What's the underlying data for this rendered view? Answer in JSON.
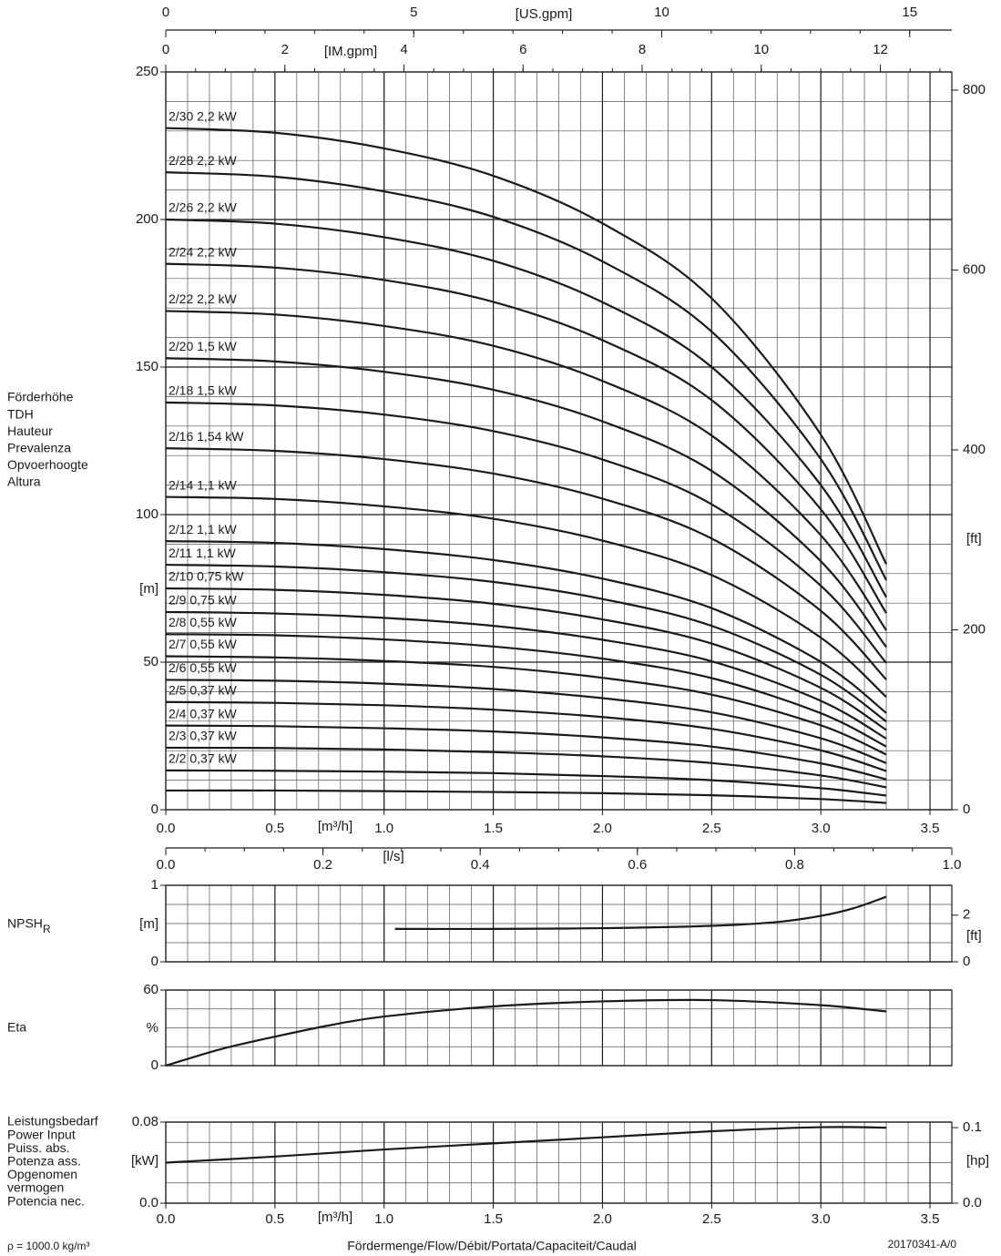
{
  "chart_data": [
    {
      "type": "line",
      "ylabel_lines": [
        "Förderhöhe",
        "TDH",
        "Hauteur",
        "Prevalenza",
        "Opvoerhoogte",
        "Altura"
      ],
      "yunit": "[m]",
      "y2unit": "[ft]",
      "xunit": "[m³/h]",
      "xlim": [
        0,
        3.6
      ],
      "xticks": [
        {
          "value": 0,
          "label": "0.0"
        },
        0.5,
        {
          "value": 1,
          "label": "1.0"
        },
        1.5,
        {
          "value": 2,
          "label": "2.0"
        },
        2.5,
        {
          "value": 3,
          "label": "3.0"
        },
        3.5
      ],
      "ylim": [
        0,
        250
      ],
      "yticks": [
        0,
        50,
        100,
        150,
        200,
        250
      ],
      "y2lim": [
        0,
        820.2
      ],
      "y2ticks": [
        0,
        200,
        400,
        600,
        800
      ],
      "grid": true,
      "color": "#1a1a1a",
      "top_axes": [
        {
          "label": "[US.gpm]",
          "xlim": [
            0,
            15.85
          ],
          "xticks": [
            0,
            5,
            10,
            15
          ]
        },
        {
          "label": "[IM.gpm]",
          "xlim": [
            0,
            13.2
          ],
          "xticks": [
            0,
            2,
            4,
            6,
            8,
            10,
            12
          ]
        }
      ],
      "x": [
        0,
        0.5,
        1,
        1.5,
        2,
        2.5,
        3,
        3.3
      ],
      "series": [
        {
          "name": "2/30 2,2 kW",
          "values": [
            231,
            229.4,
            224.1,
            214.8,
            198.7,
            173.3,
            127.1,
            83.2
          ]
        },
        {
          "name": "2/28 2,2 kW",
          "values": [
            216,
            214.5,
            209.5,
            200.9,
            185.8,
            162,
            118.8,
            77.8
          ]
        },
        {
          "name": "2/26 2,2 kW",
          "values": [
            200,
            198.6,
            194,
            186,
            172,
            150,
            110,
            72
          ]
        },
        {
          "name": "2/24 2,2 kW",
          "values": [
            185,
            183.7,
            179.5,
            172.1,
            159.1,
            138.8,
            101.8,
            66.6
          ]
        },
        {
          "name": "2/22 2,2 kW",
          "values": [
            169,
            167.8,
            163.9,
            157.2,
            145.3,
            126.8,
            93,
            60.8
          ]
        },
        {
          "name": "2/20 1,5 kW",
          "values": [
            153,
            151.9,
            148.4,
            142.3,
            131.6,
            114.8,
            84.2,
            55.1
          ]
        },
        {
          "name": "2/18 1,5 kW",
          "values": [
            138,
            137,
            133.9,
            128.3,
            118.7,
            103.5,
            75.9,
            49.7
          ]
        },
        {
          "name": "2/16 1,54 kW",
          "values": [
            122.5,
            121.6,
            118.8,
            113.9,
            105.4,
            91.9,
            67.4,
            44.1
          ]
        },
        {
          "name": "2/14 1,1 kW",
          "values": [
            106,
            105.3,
            102.8,
            98.6,
            91.2,
            79.5,
            58.3,
            38.2
          ]
        },
        {
          "name": "2/12 1,1 kW",
          "values": [
            91,
            90.4,
            88.3,
            84.6,
            78.3,
            68.3,
            50.1,
            32.8
          ]
        },
        {
          "name": "2/11 1,1 kW",
          "values": [
            83,
            82.4,
            80.5,
            77.2,
            71.4,
            62.3,
            45.7,
            29.9
          ]
        },
        {
          "name": "2/10 0,75 kW",
          "values": [
            75,
            74.5,
            72.8,
            69.8,
            64.5,
            56.3,
            41.3,
            27
          ]
        },
        {
          "name": "2/9 0,75 kW",
          "values": [
            67,
            66.5,
            65,
            62.3,
            57.6,
            50.3,
            36.9,
            24.1
          ]
        },
        {
          "name": "2/8 0,55 kW",
          "values": [
            59.5,
            59.1,
            57.7,
            55.3,
            51.2,
            44.6,
            32.7,
            21.4
          ]
        },
        {
          "name": "2/7 0,55 kW",
          "values": [
            52,
            51.6,
            50.4,
            48.4,
            44.7,
            39,
            28.6,
            18.7
          ]
        },
        {
          "name": "2/6 0,55 kW",
          "values": [
            44,
            43.7,
            42.7,
            40.9,
            37.8,
            33,
            24.2,
            15.8
          ]
        },
        {
          "name": "2/5 0,37 kW",
          "values": [
            36.5,
            36.2,
            35.4,
            33.9,
            31.4,
            27.4,
            20.1,
            13.1
          ]
        },
        {
          "name": "2/4 0,37 kW",
          "values": [
            28.5,
            28.3,
            27.6,
            26.5,
            24.5,
            21.4,
            15.7,
            10.3
          ]
        },
        {
          "name": "2/3 0,37 kW",
          "values": [
            21,
            20.9,
            20.4,
            19.5,
            18.1,
            15.8,
            11.6,
            7.6
          ]
        },
        {
          "name": "2/2 0,37 kW",
          "values": [
            13.3,
            13.2,
            12.9,
            12.4,
            11.4,
            10,
            7.3,
            4.8
          ]
        },
        {
          "name": null,
          "values": [
            6.5,
            6.5,
            6.3,
            6,
            5.6,
            4.9,
            3.6,
            2.3
          ]
        }
      ]
    },
    {
      "type": "line",
      "ylabel_lines": [
        "NPSH"
      ],
      "ylabel_sub": "R",
      "yunit": "[m]",
      "y2unit": "[ft]",
      "xlim": [
        0,
        3.6
      ],
      "xticks": [
        0,
        0.5,
        1,
        1.5,
        2,
        2.5,
        3,
        3.5
      ],
      "ylim": [
        0,
        1
      ],
      "yticks": [
        0,
        1
      ],
      "y2lim": [
        0,
        3.28
      ],
      "y2ticks": [
        0,
        2
      ],
      "grid": true,
      "color": "#1a1a1a",
      "top_axes": [
        {
          "label": "[l/s]",
          "xlim": [
            0,
            1
          ],
          "xticks": [
            {
              "value": 0,
              "label": "0.0"
            },
            0.2,
            0.4,
            0.6,
            0.8,
            {
              "value": 1,
              "label": "1.0"
            }
          ]
        }
      ],
      "x": [
        1.05,
        1.5,
        2.0,
        2.5,
        2.8,
        3.0,
        3.15,
        3.3
      ],
      "series": [
        {
          "values": [
            0.43,
            0.43,
            0.44,
            0.47,
            0.52,
            0.6,
            0.7,
            0.85
          ]
        }
      ]
    },
    {
      "type": "line",
      "ylabel_lines": [
        "Eta"
      ],
      "yunit": "%",
      "xlim": [
        0,
        3.6
      ],
      "xticks": [
        0,
        0.5,
        1,
        1.5,
        2,
        2.5,
        3,
        3.5
      ],
      "ylim": [
        0,
        60
      ],
      "yticks": [
        0,
        60
      ],
      "grid": true,
      "color": "#1a1a1a",
      "x": [
        0,
        0.25,
        0.5,
        0.75,
        1.0,
        1.5,
        2.0,
        2.5,
        3.0,
        3.3
      ],
      "series": [
        {
          "values": [
            0,
            13,
            23,
            32,
            39,
            47,
            51,
            52,
            48,
            43
          ]
        }
      ]
    },
    {
      "type": "line",
      "ylabel_lines": [
        "Leistungsbedarf",
        "Power Input",
        "Puiss. abs.",
        "Potenza ass.",
        "Opgenomen",
        "vermogen",
        "Potencia nec."
      ],
      "yunit": "[kW]",
      "y2unit": "[hp]",
      "xunit": "[m³/h]",
      "xlim": [
        0,
        3.6
      ],
      "xticks": [
        {
          "value": 0,
          "label": "0.0"
        },
        0.5,
        {
          "value": 1,
          "label": "1.0"
        },
        1.5,
        {
          "value": 2,
          "label": "2.0"
        },
        2.5,
        {
          "value": 3,
          "label": "3.0"
        },
        3.5
      ],
      "ylim": [
        0,
        0.08
      ],
      "yticks": [
        {
          "value": 0,
          "label": "0.0"
        },
        0.08
      ],
      "y2lim": [
        0,
        0.1073
      ],
      "y2ticks": [
        {
          "value": 0,
          "label": "0.0"
        },
        0.1
      ],
      "grid": true,
      "color": "#1a1a1a",
      "x": [
        0,
        0.5,
        1.0,
        1.5,
        2.0,
        2.5,
        3.0,
        3.3
      ],
      "series": [
        {
          "values": [
            0.04,
            0.046,
            0.053,
            0.059,
            0.065,
            0.071,
            0.075,
            0.0745
          ]
        }
      ]
    }
  ],
  "footer": {
    "density": "ρ = 1000.0 kg/m³",
    "xlabel": "Fördermenge/Flow/Débit/Portata/Capaciteit/Caudal",
    "code": "20170341-A/0"
  }
}
